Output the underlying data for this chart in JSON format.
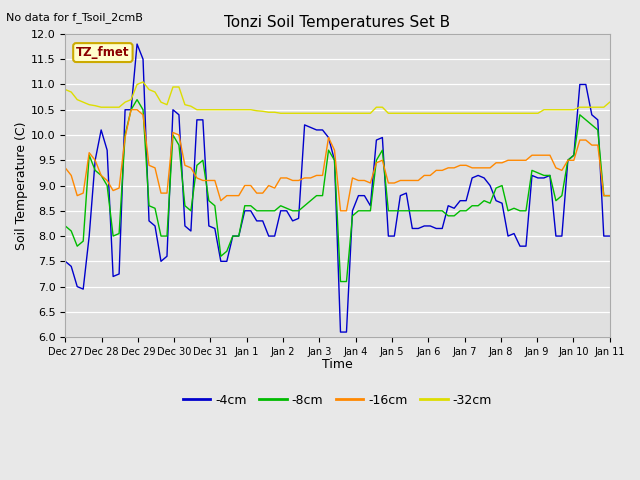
{
  "title": "Tonzi Soil Temperatures Set B",
  "no_data_label": "No data for f_Tsoil_2cmB",
  "tz_fmet_label": "TZ_fmet",
  "xlabel": "Time",
  "ylabel": "Soil Temperature (C)",
  "ylim": [
    6.0,
    12.0
  ],
  "yticks": [
    6.0,
    6.5,
    7.0,
    7.5,
    8.0,
    8.5,
    9.0,
    9.5,
    10.0,
    10.5,
    11.0,
    11.5,
    12.0
  ],
  "x_labels": [
    "Dec 27",
    "Dec 28",
    "Dec 29",
    "Dec 30",
    "Dec 31",
    "Jan 1",
    "Jan 2",
    "Jan 3",
    "Jan 4",
    "Jan 5",
    "Jan 6",
    "Jan 7",
    "Jan 8",
    "Jan 9",
    "Jan 10",
    "Jan 11"
  ],
  "colors": {
    "4cm": "#0000cc",
    "8cm": "#00bb00",
    "16cm": "#ff8800",
    "32cm": "#dddd00"
  },
  "figure_bg": "#e8e8e8",
  "plot_bg": "#e0e0e0",
  "grid_color": "#ffffff",
  "series_4cm": [
    7.5,
    7.4,
    7.0,
    6.95,
    8.0,
    9.5,
    10.1,
    9.7,
    7.2,
    7.25,
    10.5,
    10.5,
    11.8,
    11.5,
    8.3,
    8.2,
    7.5,
    7.6,
    10.5,
    10.4,
    8.2,
    8.1,
    10.3,
    10.3,
    8.2,
    8.15,
    7.5,
    7.5,
    8.0,
    8.0,
    8.5,
    8.5,
    8.3,
    8.3,
    8.0,
    8.0,
    8.5,
    8.5,
    8.3,
    8.35,
    10.2,
    10.15,
    10.1,
    10.1,
    9.95,
    9.5,
    6.1,
    6.1,
    8.5,
    8.8,
    8.8,
    8.6,
    9.9,
    9.95,
    8.0,
    8.0,
    8.8,
    8.85,
    8.15,
    8.15,
    8.2,
    8.2,
    8.15,
    8.15,
    8.6,
    8.55,
    8.7,
    8.7,
    9.15,
    9.2,
    9.15,
    9.0,
    8.7,
    8.65,
    8.0,
    8.05,
    7.8,
    7.8,
    9.2,
    9.15,
    9.15,
    9.2,
    8.0,
    8.0,
    9.5,
    9.6,
    11.0,
    11.0,
    10.4,
    10.3,
    8.0,
    8.0
  ],
  "series_8cm": [
    8.2,
    8.1,
    7.8,
    7.9,
    9.6,
    9.3,
    9.2,
    9.0,
    8.0,
    8.05,
    10.0,
    10.5,
    10.7,
    10.5,
    8.6,
    8.55,
    8.0,
    8.0,
    10.0,
    9.8,
    8.6,
    8.5,
    9.4,
    9.5,
    8.7,
    8.6,
    7.6,
    7.7,
    8.0,
    8.0,
    8.6,
    8.6,
    8.5,
    8.5,
    8.5,
    8.5,
    8.6,
    8.55,
    8.5,
    8.5,
    8.6,
    8.7,
    8.8,
    8.8,
    9.7,
    9.5,
    7.1,
    7.1,
    8.4,
    8.5,
    8.5,
    8.5,
    9.5,
    9.7,
    8.5,
    8.5,
    8.5,
    8.5,
    8.5,
    8.5,
    8.5,
    8.5,
    8.5,
    8.5,
    8.4,
    8.4,
    8.5,
    8.5,
    8.6,
    8.6,
    8.7,
    8.65,
    8.95,
    9.0,
    8.5,
    8.55,
    8.5,
    8.5,
    9.3,
    9.25,
    9.2,
    9.2,
    8.7,
    8.8,
    9.5,
    9.6,
    10.4,
    10.3,
    10.2,
    10.1,
    8.8,
    8.8
  ],
  "series_16cm": [
    9.35,
    9.2,
    8.8,
    8.85,
    9.65,
    9.5,
    9.2,
    9.1,
    8.9,
    8.95,
    9.95,
    10.5,
    10.5,
    10.4,
    9.4,
    9.35,
    8.85,
    8.85,
    10.05,
    10.0,
    9.4,
    9.35,
    9.15,
    9.1,
    9.1,
    9.1,
    8.7,
    8.8,
    8.8,
    8.8,
    9.0,
    9.0,
    8.85,
    8.85,
    9.0,
    8.95,
    9.15,
    9.15,
    9.1,
    9.1,
    9.15,
    9.15,
    9.2,
    9.2,
    9.95,
    9.7,
    8.5,
    8.5,
    9.15,
    9.1,
    9.1,
    9.05,
    9.45,
    9.5,
    9.05,
    9.05,
    9.1,
    9.1,
    9.1,
    9.1,
    9.2,
    9.2,
    9.3,
    9.3,
    9.35,
    9.35,
    9.4,
    9.4,
    9.35,
    9.35,
    9.35,
    9.35,
    9.45,
    9.45,
    9.5,
    9.5,
    9.5,
    9.5,
    9.6,
    9.6,
    9.6,
    9.6,
    9.35,
    9.3,
    9.5,
    9.5,
    9.9,
    9.9,
    9.8,
    9.8,
    8.8,
    8.8
  ],
  "series_32cm": [
    10.9,
    10.85,
    10.7,
    10.65,
    10.6,
    10.58,
    10.55,
    10.55,
    10.55,
    10.55,
    10.65,
    10.7,
    11.0,
    11.05,
    10.9,
    10.85,
    10.65,
    10.6,
    10.95,
    10.95,
    10.6,
    10.57,
    10.5,
    10.5,
    10.5,
    10.5,
    10.5,
    10.5,
    10.5,
    10.5,
    10.5,
    10.5,
    10.48,
    10.47,
    10.45,
    10.45,
    10.43,
    10.43,
    10.43,
    10.43,
    10.43,
    10.43,
    10.43,
    10.43,
    10.43,
    10.43,
    10.43,
    10.43,
    10.43,
    10.43,
    10.43,
    10.43,
    10.55,
    10.55,
    10.43,
    10.43,
    10.43,
    10.43,
    10.43,
    10.43,
    10.43,
    10.43,
    10.43,
    10.43,
    10.43,
    10.43,
    10.43,
    10.43,
    10.43,
    10.43,
    10.43,
    10.43,
    10.43,
    10.43,
    10.43,
    10.43,
    10.43,
    10.43,
    10.43,
    10.43,
    10.5,
    10.5,
    10.5,
    10.5,
    10.5,
    10.5,
    10.55,
    10.55,
    10.55,
    10.55,
    10.55,
    10.65
  ]
}
